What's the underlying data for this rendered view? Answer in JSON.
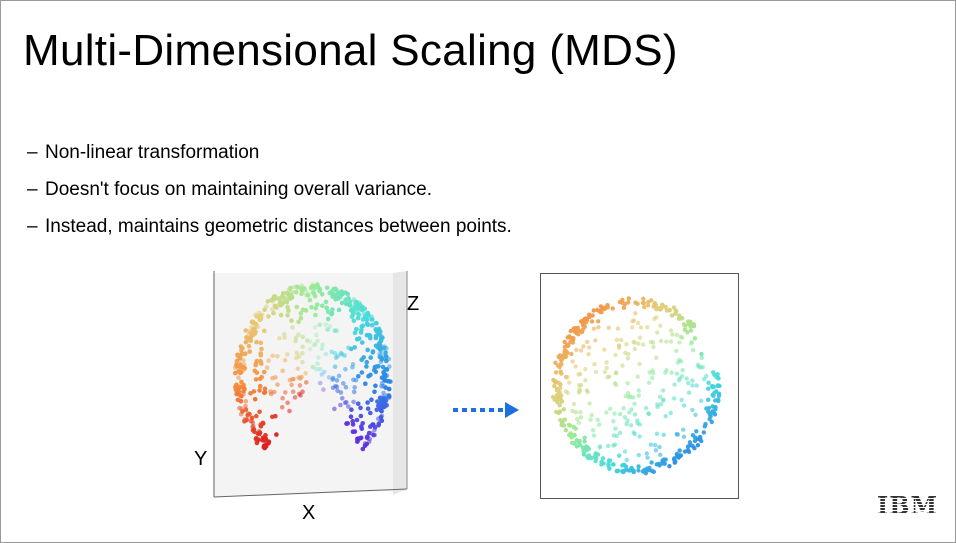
{
  "slide": {
    "title": "Multi-Dimensional Scaling (MDS)",
    "bullets": [
      "Non-linear transformation",
      "Doesn't focus on maintaining overall variance.",
      "Instead, maintains geometric distances between points."
    ],
    "bullet_marker": "–",
    "axes_3d": {
      "x": "X",
      "y": "Y",
      "z": "Z"
    },
    "logo": "IBM"
  },
  "figure": {
    "left_panel": "3D data embedded on a curved surface, colored red→orange→green→cyan→blue→purple",
    "right_panel": "2D MDS embedding preserving pairwise distances",
    "arrow_color": "#1f6fe0"
  }
}
